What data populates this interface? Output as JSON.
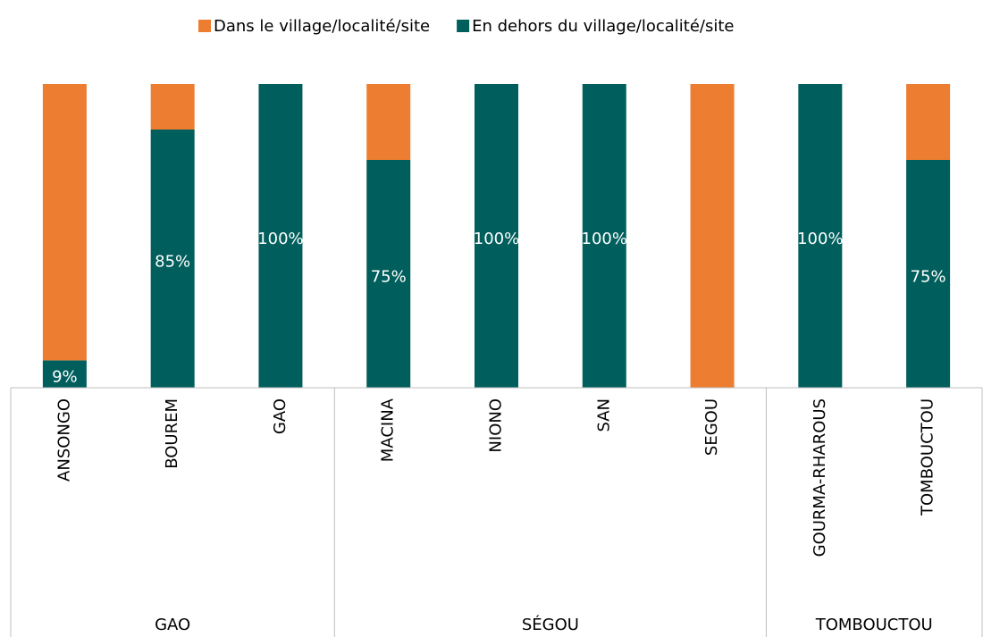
{
  "chart_data": {
    "type": "stacked_bar",
    "categories": [
      "ANSONGO",
      "BOUREM",
      "GAO",
      "MACINA",
      "NIONO",
      "SAN",
      "SEGOU",
      "GOURMA-RHAROUS",
      "TOMBOUCTOU"
    ],
    "groups": [
      {
        "name": "GAO",
        "size": 3
      },
      {
        "name": "SÉGOU",
        "size": 4
      },
      {
        "name": "TOMBOUCTOU",
        "size": 2
      }
    ],
    "series": [
      {
        "name": "Dans le village/localité/site",
        "color": "#ed7d31",
        "values": [
          91,
          15,
          0,
          25,
          0,
          0,
          100,
          0,
          25
        ]
      },
      {
        "name": "En dehors du village/localité/site",
        "color": "#005f5c",
        "values": [
          9,
          85,
          100,
          75,
          100,
          100,
          0,
          100,
          75
        ],
        "value_labels": [
          "9%",
          "85%",
          "100%",
          "75%",
          "100%",
          "100%",
          null,
          "100%",
          "75%"
        ]
      }
    ],
    "legend": "top"
  }
}
